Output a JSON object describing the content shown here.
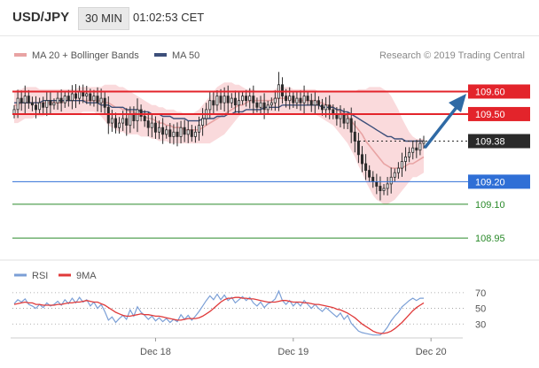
{
  "header": {
    "symbol": "USD/JPY",
    "timeframe": "30 MIN",
    "time": "01:02:53 CET"
  },
  "legend": {
    "ma20": "MA 20 + Bollinger Bands",
    "ma50": "MA 50",
    "credit": "Research © 2019 Trading Central"
  },
  "colors": {
    "ma20": "#e8a3a3",
    "band": "#f9d3d6",
    "ma50": "#3d4f7a",
    "bull": "#2a2a2a",
    "resistance": "#e3242b",
    "support": "#2f6fd6",
    "target": "#2a8a2a",
    "arrow": "#2f6aa5",
    "rsi": "#7b9fd6",
    "rsi_ma": "#e03a3a"
  },
  "levels": [
    {
      "price": 109.6,
      "label": "109.60",
      "style": "resistance"
    },
    {
      "price": 109.5,
      "label": "109.50",
      "style": "resistance"
    },
    {
      "price": 109.38,
      "label": "109.38",
      "style": "current"
    },
    {
      "price": 109.2,
      "label": "109.20",
      "style": "support"
    },
    {
      "price": 109.1,
      "label": "109.10",
      "style": "target"
    },
    {
      "price": 108.95,
      "label": "108.95",
      "style": "target"
    }
  ],
  "rsi_panel": {
    "legend_rsi": "RSI",
    "legend_ma": "9MA",
    "ticks": [
      70,
      50,
      30
    ],
    "ylim": [
      10,
      80
    ]
  },
  "chart_data": {
    "type": "candlestick",
    "price_ylim": [
      108.86,
      109.7
    ],
    "x_tick_labels": [
      {
        "label": "Dec 18",
        "index": 39
      },
      {
        "label": "Dec 19",
        "index": 77
      },
      {
        "label": "Dec 20",
        "index": 115
      }
    ],
    "close": [
      109.52,
      109.57,
      109.55,
      109.58,
      109.55,
      109.54,
      109.52,
      109.55,
      109.53,
      109.56,
      109.54,
      109.55,
      109.57,
      109.55,
      109.58,
      109.56,
      109.59,
      109.57,
      109.6,
      109.58,
      109.59,
      109.56,
      109.58,
      109.55,
      109.57,
      109.53,
      109.46,
      109.48,
      109.44,
      109.46,
      109.48,
      109.45,
      109.5,
      109.47,
      109.52,
      109.49,
      109.47,
      109.44,
      109.46,
      109.42,
      109.44,
      109.41,
      109.43,
      109.4,
      109.42,
      109.4,
      109.44,
      109.41,
      109.43,
      109.4,
      109.42,
      109.45,
      109.48,
      109.52,
      109.56,
      109.54,
      109.58,
      109.55,
      109.58,
      109.55,
      109.57,
      109.54,
      109.56,
      109.58,
      109.56,
      109.58,
      109.55,
      109.53,
      109.55,
      109.52,
      109.54,
      109.55,
      109.57,
      109.63,
      109.58,
      109.56,
      109.58,
      109.55,
      109.57,
      109.55,
      109.58,
      109.56,
      109.54,
      109.56,
      109.54,
      109.52,
      109.54,
      109.52,
      109.5,
      109.48,
      109.5,
      109.46,
      109.48,
      109.42,
      109.38,
      109.32,
      109.28,
      109.25,
      109.22,
      109.2,
      109.18,
      109.16,
      109.17,
      109.19,
      109.22,
      109.24,
      109.26,
      109.29,
      109.31,
      109.33,
      109.35,
      109.34,
      109.37,
      109.38
    ],
    "ma20": [
      109.54,
      109.54,
      109.55,
      109.55,
      109.55,
      109.55,
      109.55,
      109.55,
      109.55,
      109.55,
      109.55,
      109.55,
      109.55,
      109.55,
      109.56,
      109.56,
      109.56,
      109.56,
      109.56,
      109.56,
      109.56,
      109.56,
      109.56,
      109.56,
      109.56,
      109.55,
      109.55,
      109.54,
      109.53,
      109.53,
      109.52,
      109.52,
      109.51,
      109.51,
      109.5,
      109.5,
      109.49,
      109.48,
      109.48,
      109.47,
      109.46,
      109.46,
      109.45,
      109.45,
      109.44,
      109.44,
      109.44,
      109.43,
      109.43,
      109.43,
      109.43,
      109.43,
      109.44,
      109.45,
      109.46,
      109.47,
      109.48,
      109.49,
      109.5,
      109.51,
      109.52,
      109.53,
      109.54,
      109.54,
      109.55,
      109.56,
      109.56,
      109.56,
      109.56,
      109.56,
      109.56,
      109.56,
      109.57,
      109.57,
      109.57,
      109.57,
      109.57,
      109.56,
      109.56,
      109.56,
      109.56,
      109.56,
      109.56,
      109.56,
      109.55,
      109.55,
      109.54,
      109.54,
      109.53,
      109.52,
      109.51,
      109.5,
      109.49,
      109.47,
      109.45,
      109.43,
      109.41,
      109.38,
      109.36,
      109.34,
      109.32,
      109.3,
      109.28,
      109.27,
      109.26,
      109.26,
      109.26,
      109.26,
      109.27,
      109.28,
      109.28,
      109.29,
      109.3,
      109.31
    ],
    "bb_upper": [
      109.6,
      109.61,
      109.61,
      109.62,
      109.62,
      109.62,
      109.62,
      109.61,
      109.61,
      109.61,
      109.61,
      109.61,
      109.61,
      109.61,
      109.61,
      109.61,
      109.61,
      109.61,
      109.62,
      109.62,
      109.62,
      109.62,
      109.62,
      109.62,
      109.62,
      109.63,
      109.63,
      109.63,
      109.63,
      109.62,
      109.62,
      109.61,
      109.6,
      109.59,
      109.58,
      109.57,
      109.56,
      109.55,
      109.54,
      109.54,
      109.53,
      109.53,
      109.52,
      109.52,
      109.52,
      109.51,
      109.51,
      109.5,
      109.5,
      109.5,
      109.51,
      109.52,
      109.54,
      109.56,
      109.58,
      109.6,
      109.62,
      109.63,
      109.64,
      109.64,
      109.64,
      109.63,
      109.63,
      109.62,
      109.61,
      109.61,
      109.61,
      109.6,
      109.6,
      109.6,
      109.6,
      109.6,
      109.61,
      109.62,
      109.62,
      109.62,
      109.62,
      109.61,
      109.61,
      109.61,
      109.61,
      109.61,
      109.61,
      109.61,
      109.6,
      109.6,
      109.6,
      109.6,
      109.6,
      109.6,
      109.6,
      109.6,
      109.6,
      109.6,
      109.6,
      109.61,
      109.61,
      109.61,
      109.62,
      109.62,
      109.62,
      109.62,
      109.61,
      109.6,
      109.58,
      109.55,
      109.52,
      109.48,
      109.45,
      109.42,
      109.4,
      109.39,
      109.39,
      109.39
    ],
    "bb_lower": [
      109.46,
      109.46,
      109.47,
      109.48,
      109.48,
      109.48,
      109.49,
      109.49,
      109.49,
      109.5,
      109.5,
      109.5,
      109.5,
      109.5,
      109.5,
      109.5,
      109.5,
      109.5,
      109.5,
      109.51,
      109.51,
      109.51,
      109.51,
      109.5,
      109.49,
      109.47,
      109.45,
      109.44,
      109.43,
      109.42,
      109.42,
      109.41,
      109.41,
      109.41,
      109.41,
      109.4,
      109.4,
      109.4,
      109.39,
      109.39,
      109.38,
      109.38,
      109.38,
      109.37,
      109.37,
      109.37,
      109.37,
      109.37,
      109.37,
      109.37,
      109.37,
      109.37,
      109.37,
      109.37,
      109.37,
      109.38,
      109.39,
      109.4,
      109.41,
      109.43,
      109.45,
      109.47,
      109.49,
      109.5,
      109.5,
      109.5,
      109.5,
      109.5,
      109.5,
      109.5,
      109.5,
      109.5,
      109.5,
      109.5,
      109.5,
      109.5,
      109.5,
      109.5,
      109.5,
      109.5,
      109.5,
      109.5,
      109.5,
      109.5,
      109.49,
      109.48,
      109.47,
      109.46,
      109.45,
      109.43,
      109.41,
      109.39,
      109.37,
      109.34,
      109.31,
      109.27,
      109.24,
      109.2,
      109.17,
      109.14,
      109.12,
      109.11,
      109.1,
      109.1,
      109.11,
      109.12,
      109.14,
      109.16,
      109.18,
      109.2,
      109.22,
      109.22,
      109.23,
      109.24
    ],
    "ma50": [
      109.55,
      109.55,
      109.55,
      109.55,
      109.55,
      109.55,
      109.55,
      109.55,
      109.56,
      109.56,
      109.56,
      109.56,
      109.56,
      109.56,
      109.56,
      109.56,
      109.56,
      109.56,
      109.56,
      109.56,
      109.55,
      109.55,
      109.55,
      109.55,
      109.54,
      109.54,
      109.54,
      109.53,
      109.53,
      109.53,
      109.53,
      109.52,
      109.52,
      109.52,
      109.52,
      109.51,
      109.51,
      109.51,
      109.5,
      109.5,
      109.5,
      109.49,
      109.49,
      109.49,
      109.48,
      109.48,
      109.48,
      109.48,
      109.47,
      109.47,
      109.47,
      109.47,
      109.48,
      109.48,
      109.48,
      109.48,
      109.49,
      109.49,
      109.49,
      109.5,
      109.5,
      109.51,
      109.51,
      109.51,
      109.52,
      109.52,
      109.52,
      109.52,
      109.52,
      109.53,
      109.53,
      109.53,
      109.53,
      109.53,
      109.54,
      109.54,
      109.54,
      109.54,
      109.54,
      109.54,
      109.54,
      109.54,
      109.54,
      109.54,
      109.54,
      109.53,
      109.53,
      109.53,
      109.53,
      109.52,
      109.52,
      109.51,
      109.51,
      109.5,
      109.49,
      109.48,
      109.47,
      109.46,
      109.45,
      109.44,
      109.43,
      109.42,
      109.41,
      109.4,
      109.4,
      109.39,
      109.39,
      109.39,
      109.38,
      109.38,
      109.38,
      109.38,
      109.38,
      109.38
    ],
    "rsi": [
      56,
      61,
      58,
      62,
      55,
      53,
      50,
      55,
      51,
      57,
      53,
      55,
      59,
      54,
      61,
      56,
      63,
      57,
      64,
      58,
      61,
      53,
      58,
      50,
      55,
      46,
      35,
      39,
      32,
      37,
      41,
      36,
      48,
      40,
      52,
      45,
      41,
      36,
      40,
      34,
      38,
      33,
      37,
      32,
      36,
      33,
      42,
      36,
      41,
      35,
      40,
      46,
      53,
      60,
      66,
      61,
      68,
      61,
      67,
      60,
      64,
      57,
      61,
      65,
      60,
      64,
      57,
      53,
      58,
      51,
      56,
      58,
      62,
      72,
      60,
      55,
      60,
      53,
      58,
      53,
      60,
      55,
      50,
      55,
      50,
      46,
      51,
      47,
      43,
      39,
      44,
      36,
      41,
      31,
      26,
      21,
      19,
      18,
      17,
      16,
      16,
      16,
      20,
      26,
      34,
      40,
      45,
      52,
      56,
      60,
      63,
      60,
      63,
      63
    ],
    "rsi_ma": [
      55,
      56,
      57,
      58,
      57,
      57,
      55,
      55,
      54,
      54,
      54,
      54,
      55,
      55,
      56,
      57,
      57,
      58,
      58,
      59,
      60,
      59,
      58,
      58,
      56,
      54,
      51,
      48,
      45,
      43,
      41,
      40,
      40,
      41,
      42,
      43,
      42,
      42,
      41,
      40,
      40,
      39,
      38,
      37,
      36,
      35,
      35,
      36,
      37,
      37,
      37,
      38,
      40,
      43,
      46,
      50,
      54,
      58,
      61,
      63,
      63,
      64,
      64,
      63,
      63,
      62,
      62,
      61,
      60,
      59,
      58,
      58,
      58,
      59,
      60,
      60,
      59,
      58,
      58,
      58,
      57,
      57,
      56,
      55,
      55,
      54,
      53,
      52,
      51,
      49,
      48,
      46,
      44,
      41,
      38,
      34,
      30,
      27,
      24,
      21,
      19,
      18,
      18,
      19,
      21,
      24,
      28,
      32,
      37,
      42,
      47,
      51,
      54,
      57
    ]
  }
}
